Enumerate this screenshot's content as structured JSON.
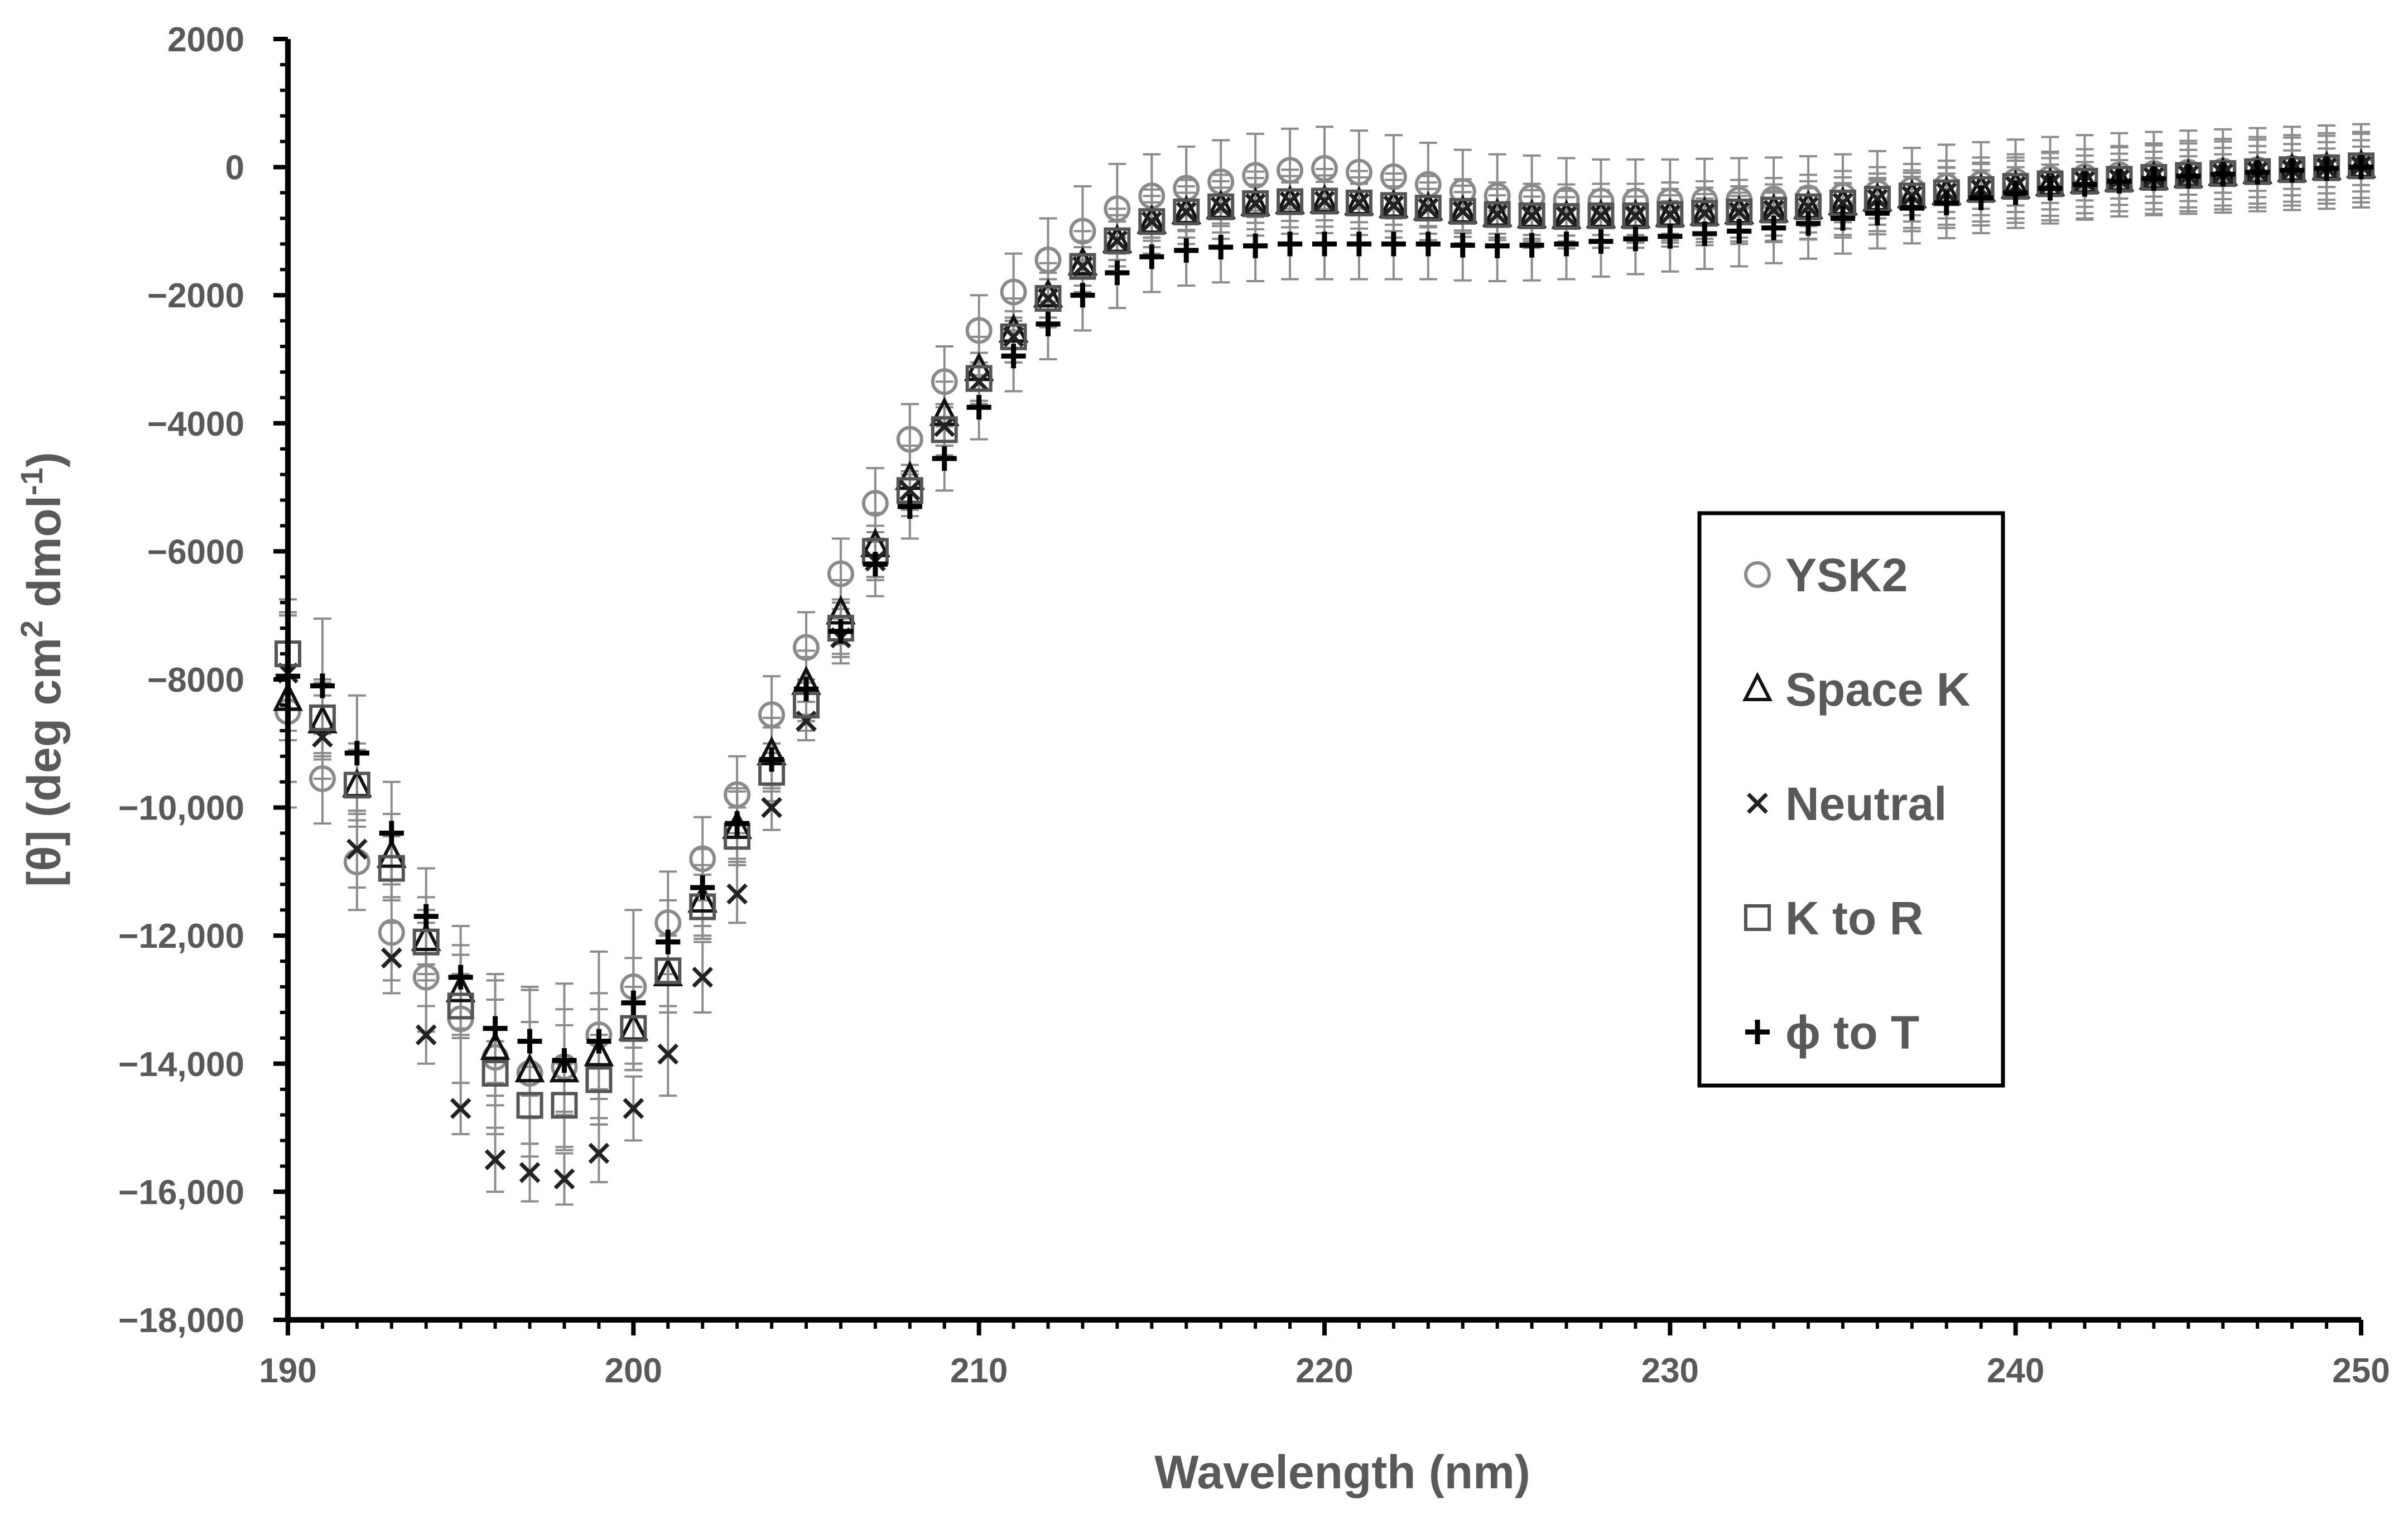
{
  "chart_data": {
    "type": "scatter",
    "title": "",
    "xlabel": "Wavelength (nm)",
    "ylabel_parts": [
      "[θ] (deg cm",
      "2",
      " dmol",
      "-1",
      ")"
    ],
    "xlim": [
      190,
      250
    ],
    "ylim": [
      -18000,
      2000
    ],
    "x_ticks": [
      190,
      200,
      210,
      220,
      230,
      240,
      250
    ],
    "x_tick_labels": [
      "190",
      "200",
      "210",
      "220",
      "230",
      "240",
      "250"
    ],
    "y_ticks": [
      2000,
      0,
      -2000,
      -4000,
      -6000,
      -8000,
      -10000,
      -12000,
      -14000,
      -16000,
      -18000
    ],
    "y_tick_labels": [
      "2000",
      "0",
      "−2000",
      "−4000",
      "−6000",
      "−8000",
      "−10,000",
      "−12,000",
      "−14,000",
      "−16,000",
      "−18,000"
    ],
    "grid": false,
    "legend_position": "center-right",
    "x": [
      190,
      191,
      192,
      193,
      194,
      195,
      196,
      197,
      198,
      199,
      200,
      201,
      202,
      203,
      204,
      205,
      206,
      207,
      208,
      209,
      210,
      211,
      212,
      213,
      214,
      215,
      216,
      217,
      218,
      219,
      220,
      221,
      222,
      223,
      224,
      225,
      226,
      227,
      228,
      229,
      230,
      231,
      232,
      233,
      234,
      235,
      236,
      237,
      238,
      239,
      240,
      241,
      242,
      243,
      244,
      245,
      246,
      247,
      248,
      249,
      250
    ],
    "series": [
      {
        "name": "YSK2",
        "marker": "circle",
        "color": "#8a8a8a",
        "values": [
          -8500,
          -9550,
          -10850,
          -11950,
          -12650,
          -13300,
          -13900,
          -14150,
          -14050,
          -13550,
          -12800,
          -11800,
          -10800,
          -9800,
          -8550,
          -7500,
          -6350,
          -5250,
          -4250,
          -3350,
          -2550,
          -1950,
          -1450,
          -1000,
          -650,
          -450,
          -330,
          -230,
          -130,
          -50,
          -20,
          -80,
          -150,
          -270,
          -380,
          -450,
          -470,
          -510,
          -530,
          -530,
          -530,
          -520,
          -510,
          -500,
          -480,
          -450,
          -400,
          -350,
          -300,
          -260,
          -220,
          -180,
          -150,
          -120,
          -100,
          -80,
          -60,
          -40,
          -20,
          0,
          20
        ],
        "errors": [
          1500,
          700,
          750,
          750,
          850,
          1000,
          1200,
          1300,
          1300,
          1300,
          1200,
          800,
          650,
          600,
          600,
          550,
          550,
          550,
          550,
          550,
          550,
          600,
          650,
          700,
          700,
          650,
          650,
          650,
          650,
          650,
          650,
          650,
          650,
          650,
          650,
          650,
          650,
          650,
          650,
          650,
          650,
          650,
          650,
          650,
          650,
          650,
          650,
          650,
          650,
          650,
          650,
          650,
          650,
          650,
          650,
          650,
          650,
          650,
          650,
          650,
          650
        ]
      },
      {
        "name": "Space K",
        "marker": "triangle",
        "color": "#111111",
        "values": [
          -8300,
          -8650,
          -9650,
          -10750,
          -12050,
          -12850,
          -13750,
          -14100,
          -14100,
          -13850,
          -13450,
          -12600,
          -11450,
          -10300,
          -9150,
          -8050,
          -6950,
          -5900,
          -4850,
          -3850,
          -3150,
          -2550,
          -2000,
          -1500,
          -1150,
          -850,
          -700,
          -620,
          -570,
          -540,
          -530,
          -560,
          -600,
          -640,
          -690,
          -740,
          -760,
          -770,
          -760,
          -760,
          -740,
          -720,
          -700,
          -670,
          -620,
          -560,
          -500,
          -450,
          -400,
          -350,
          -300,
          -260,
          -220,
          -190,
          -160,
          -130,
          -100,
          -70,
          -40,
          -10,
          20
        ],
        "errors": [
          1300,
          600,
          650,
          650,
          650,
          700,
          750,
          750,
          700,
          700,
          650,
          600,
          550,
          550,
          550,
          500,
          500,
          500,
          500,
          500,
          500,
          500,
          500,
          500,
          500,
          500,
          500,
          500,
          500,
          500,
          500,
          500,
          500,
          500,
          500,
          500,
          500,
          500,
          500,
          500,
          500,
          500,
          500,
          500,
          500,
          500,
          500,
          500,
          500,
          500,
          500,
          500,
          500,
          500,
          500,
          500,
          500,
          500,
          500,
          500,
          500
        ]
      },
      {
        "name": "Neutral",
        "marker": "x",
        "color": "#222222",
        "values": [
          -7900,
          -8900,
          -10650,
          -12350,
          -13550,
          -14700,
          -15500,
          -15700,
          -15800,
          -15400,
          -14700,
          -13850,
          -12650,
          -11350,
          -10000,
          -8650,
          -7350,
          -6150,
          -5050,
          -4050,
          -3350,
          -2650,
          -2050,
          -1550,
          -1150,
          -850,
          -700,
          -620,
          -570,
          -540,
          -530,
          -560,
          -600,
          -640,
          -690,
          -740,
          -760,
          -770,
          -760,
          -760,
          -740,
          -720,
          -700,
          -670,
          -620,
          -560,
          -500,
          -450,
          -400,
          -350,
          -300,
          -260,
          -220,
          -190,
          -160,
          -130,
          -100,
          -70,
          -40,
          -10,
          20
        ],
        "errors": [
          900,
          650,
          600,
          550,
          450,
          400,
          500,
          450,
          400,
          450,
          500,
          650,
          550,
          450,
          350,
          300,
          300,
          300,
          300,
          300,
          300,
          300,
          300,
          300,
          300,
          300,
          300,
          300,
          300,
          300,
          300,
          300,
          300,
          300,
          300,
          300,
          300,
          300,
          300,
          300,
          300,
          300,
          300,
          300,
          300,
          300,
          300,
          300,
          300,
          300,
          300,
          300,
          300,
          300,
          300,
          300,
          300,
          300,
          300,
          300,
          300
        ]
      },
      {
        "name": "K to R",
        "marker": "square",
        "color": "#555555",
        "values": [
          -7600,
          -8600,
          -9650,
          -10950,
          -12100,
          -13100,
          -14150,
          -14650,
          -14650,
          -14250,
          -13450,
          -12550,
          -11550,
          -10450,
          -9450,
          -8400,
          -7200,
          -6000,
          -5050,
          -4100,
          -3300,
          -2650,
          -2050,
          -1550,
          -1150,
          -850,
          -700,
          -620,
          -570,
          -540,
          -530,
          -560,
          -600,
          -640,
          -690,
          -740,
          -760,
          -770,
          -760,
          -760,
          -740,
          -720,
          -700,
          -670,
          -620,
          -560,
          -500,
          -450,
          -400,
          -350,
          -300,
          -260,
          -220,
          -190,
          -160,
          -130,
          -100,
          -70,
          -40,
          -10,
          20
        ],
        "errors": [
          850,
          600,
          550,
          500,
          500,
          500,
          500,
          600,
          650,
          700,
          650,
          550,
          500,
          450,
          450,
          400,
          400,
          400,
          400,
          400,
          400,
          400,
          400,
          400,
          400,
          400,
          400,
          400,
          400,
          400,
          400,
          400,
          400,
          400,
          400,
          400,
          400,
          400,
          400,
          400,
          400,
          400,
          400,
          400,
          400,
          400,
          400,
          400,
          400,
          400,
          400,
          400,
          400,
          400,
          400,
          400,
          400,
          400,
          400,
          400,
          400
        ]
      },
      {
        "name": "ϕ to T",
        "marker": "plus",
        "color": "#000000",
        "values": [
          -7950,
          -8100,
          -9150,
          -10400,
          -11700,
          -12650,
          -13450,
          -13650,
          -13950,
          -13650,
          -13050,
          -12100,
          -11250,
          -10250,
          -9250,
          -8150,
          -7250,
          -6200,
          -5300,
          -4550,
          -3750,
          -2950,
          -2450,
          -2000,
          -1650,
          -1400,
          -1300,
          -1250,
          -1230,
          -1200,
          -1200,
          -1200,
          -1200,
          -1200,
          -1220,
          -1230,
          -1220,
          -1200,
          -1160,
          -1120,
          -1080,
          -1040,
          -1000,
          -950,
          -880,
          -800,
          -720,
          -640,
          -560,
          -480,
          -400,
          -330,
          -270,
          -220,
          -180,
          -140,
          -110,
          -80,
          -50,
          -20,
          0
        ],
        "errors": [
          1000,
          1050,
          900,
          800,
          750,
          800,
          850,
          850,
          800,
          750,
          700,
          650,
          600,
          550,
          500,
          500,
          500,
          500,
          500,
          500,
          500,
          550,
          550,
          550,
          550,
          550,
          550,
          550,
          550,
          550,
          550,
          550,
          550,
          550,
          550,
          550,
          550,
          550,
          550,
          550,
          550,
          550,
          550,
          550,
          550,
          550,
          550,
          550,
          550,
          550,
          550,
          550,
          550,
          550,
          550,
          550,
          550,
          550,
          550,
          550,
          550
        ]
      }
    ]
  }
}
